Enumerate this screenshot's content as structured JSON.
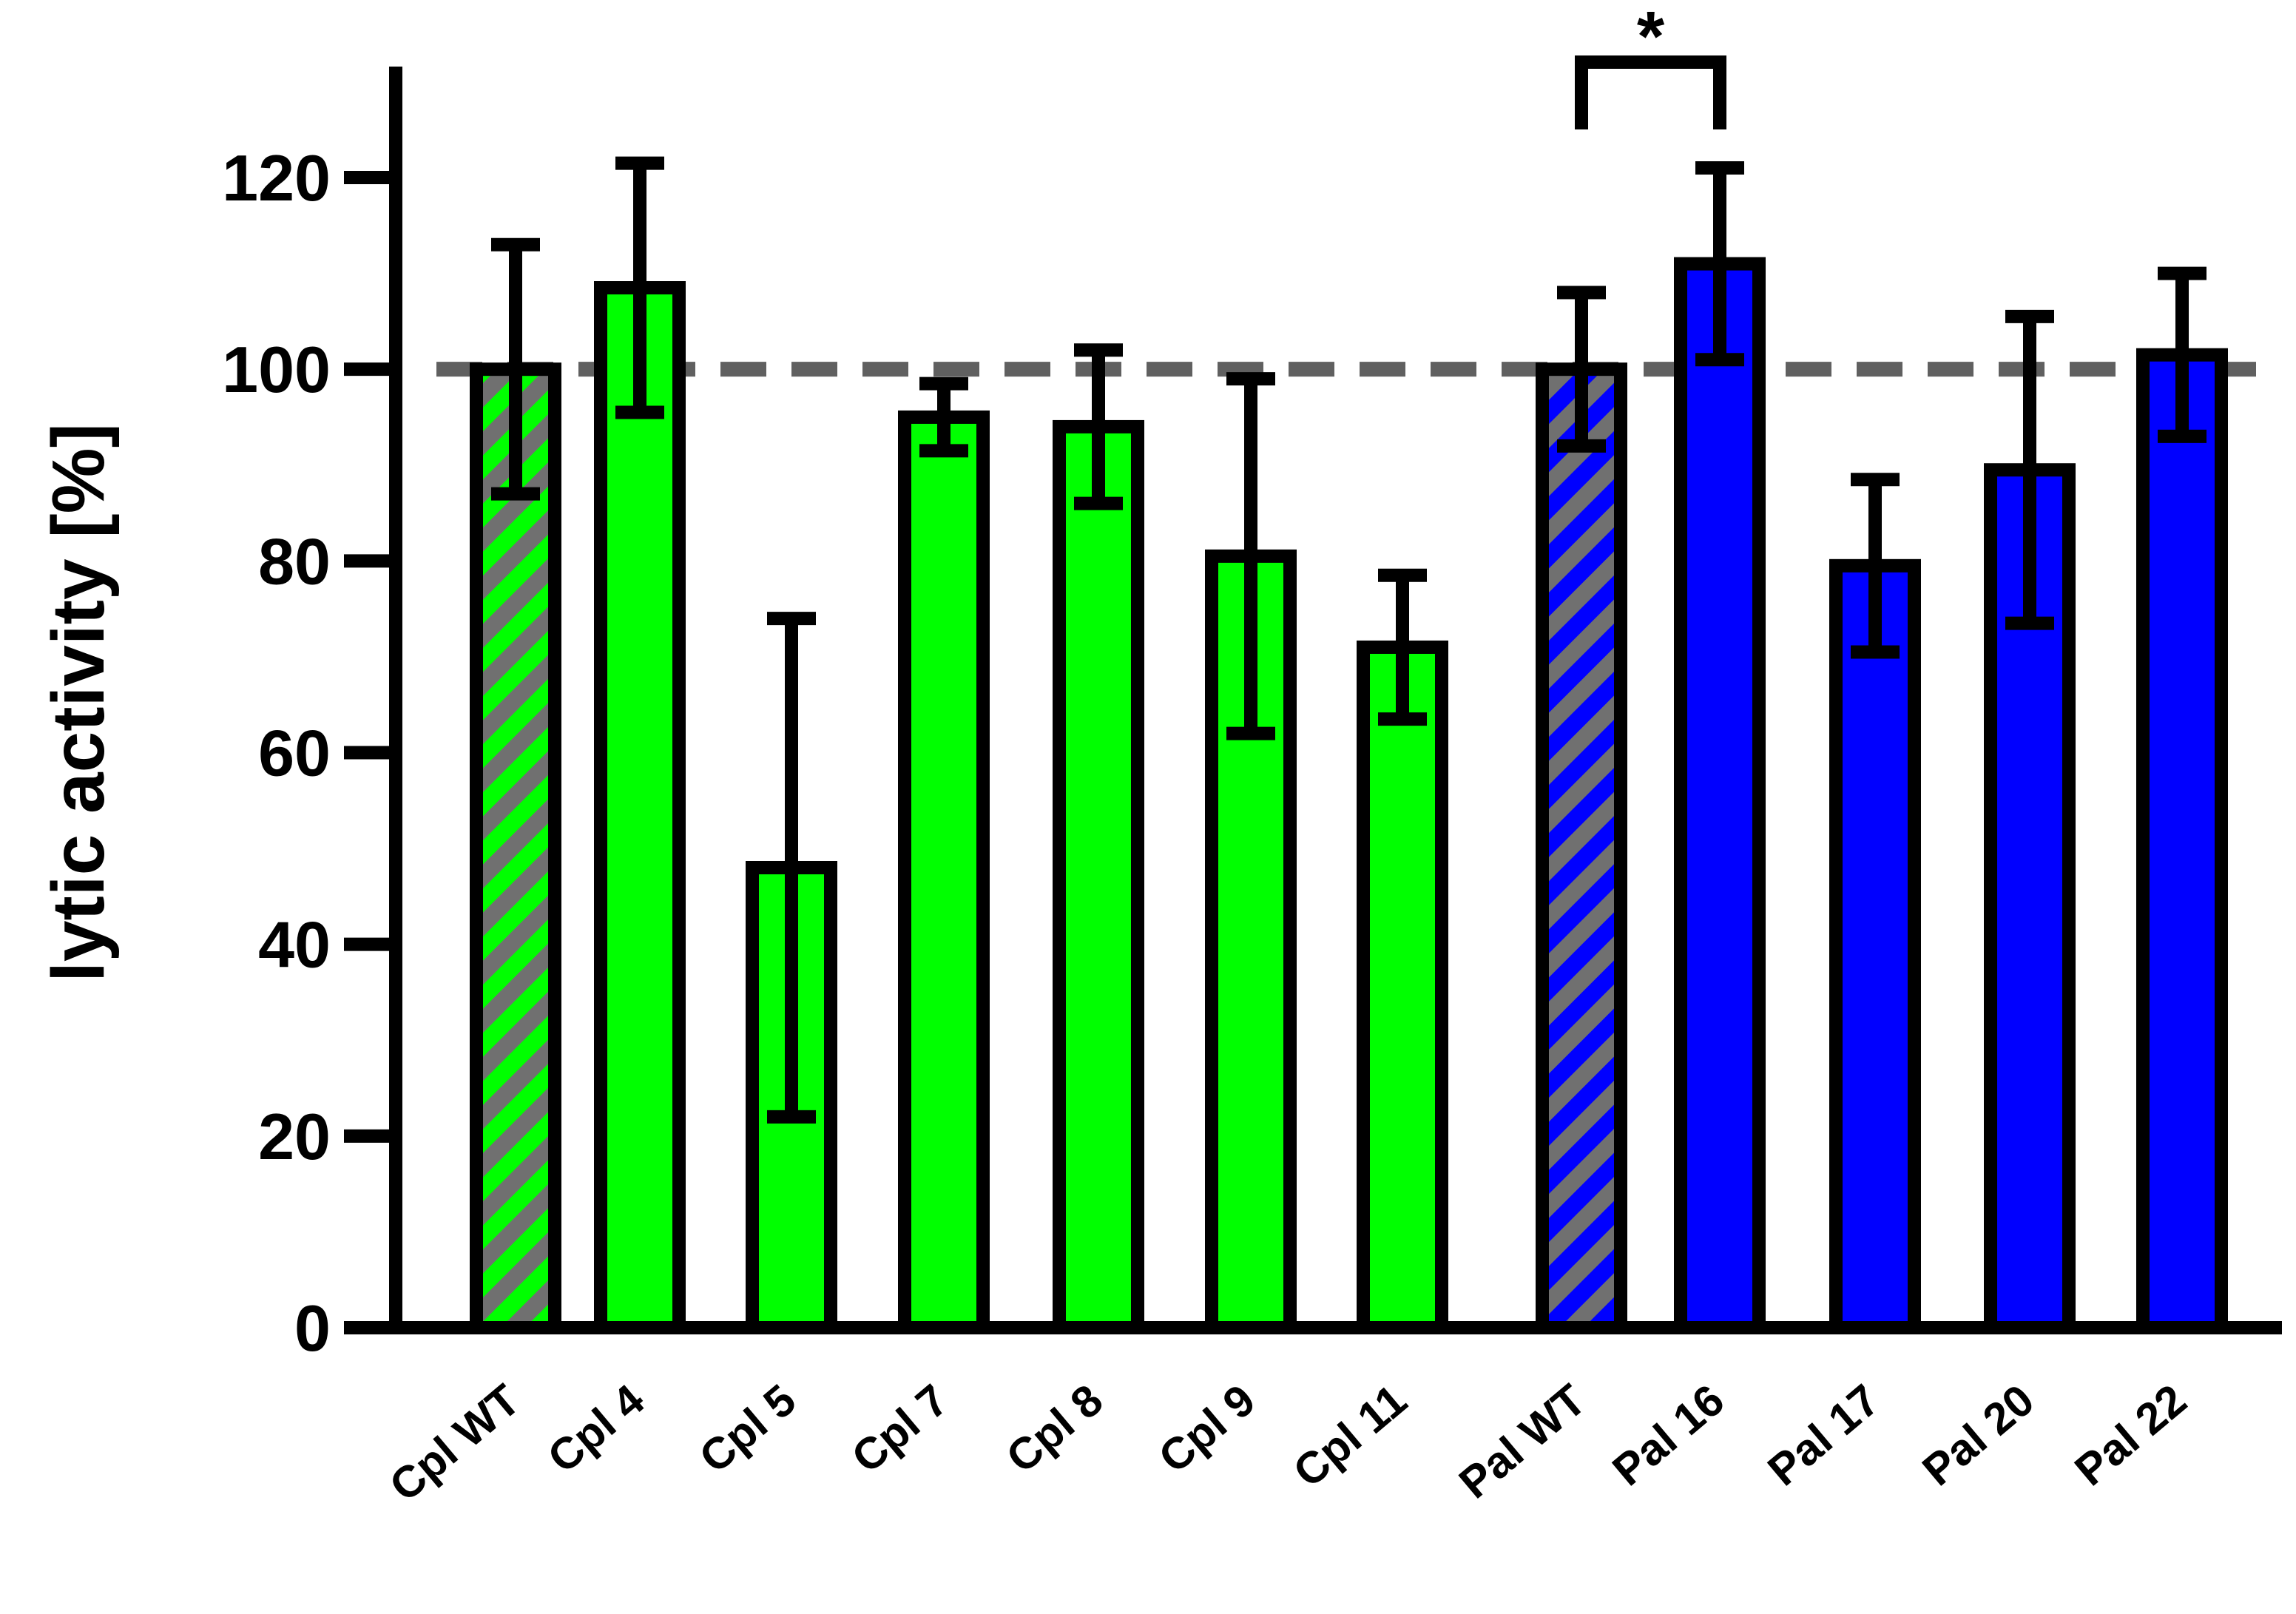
{
  "chart_data": {
    "type": "bar",
    "ylabel": "lytic activity [%]",
    "xlabel": "",
    "ylim": [
      0,
      130
    ],
    "yticks": [
      "0",
      "20",
      "40",
      "60",
      "80",
      "100",
      "120"
    ],
    "reference_line": {
      "value": 100,
      "style": "dashed",
      "color": "#606060"
    },
    "grid": false,
    "categories": [
      "Cpl WT",
      "Cpl 4",
      "Cpl 5",
      "Cpl 7",
      "Cpl 8",
      "Cpl 9",
      "Cpl 11",
      "Pal WT",
      "Pal 16",
      "Pal 17",
      "Pal 20",
      "Pal 22"
    ],
    "values": [
      100,
      108.5,
      48,
      95,
      94,
      80.5,
      71,
      100,
      111,
      79.5,
      89.5,
      101.5
    ],
    "errors": [
      13,
      13,
      26,
      3.5,
      8,
      18.5,
      7.5,
      8,
      10,
      9,
      16,
      8.5
    ],
    "colors": [
      "#00ff00",
      "#00ff00",
      "#00ff00",
      "#00ff00",
      "#00ff00",
      "#00ff00",
      "#00ff00",
      "#0000ff",
      "#0000ff",
      "#0000ff",
      "#0000ff",
      "#0000ff"
    ],
    "hatched": [
      true,
      false,
      false,
      false,
      false,
      false,
      false,
      true,
      false,
      false,
      false,
      false
    ],
    "hatch_color": "#707070",
    "significance": {
      "from": "Pal WT",
      "to": "Pal 16",
      "label": "*"
    }
  }
}
